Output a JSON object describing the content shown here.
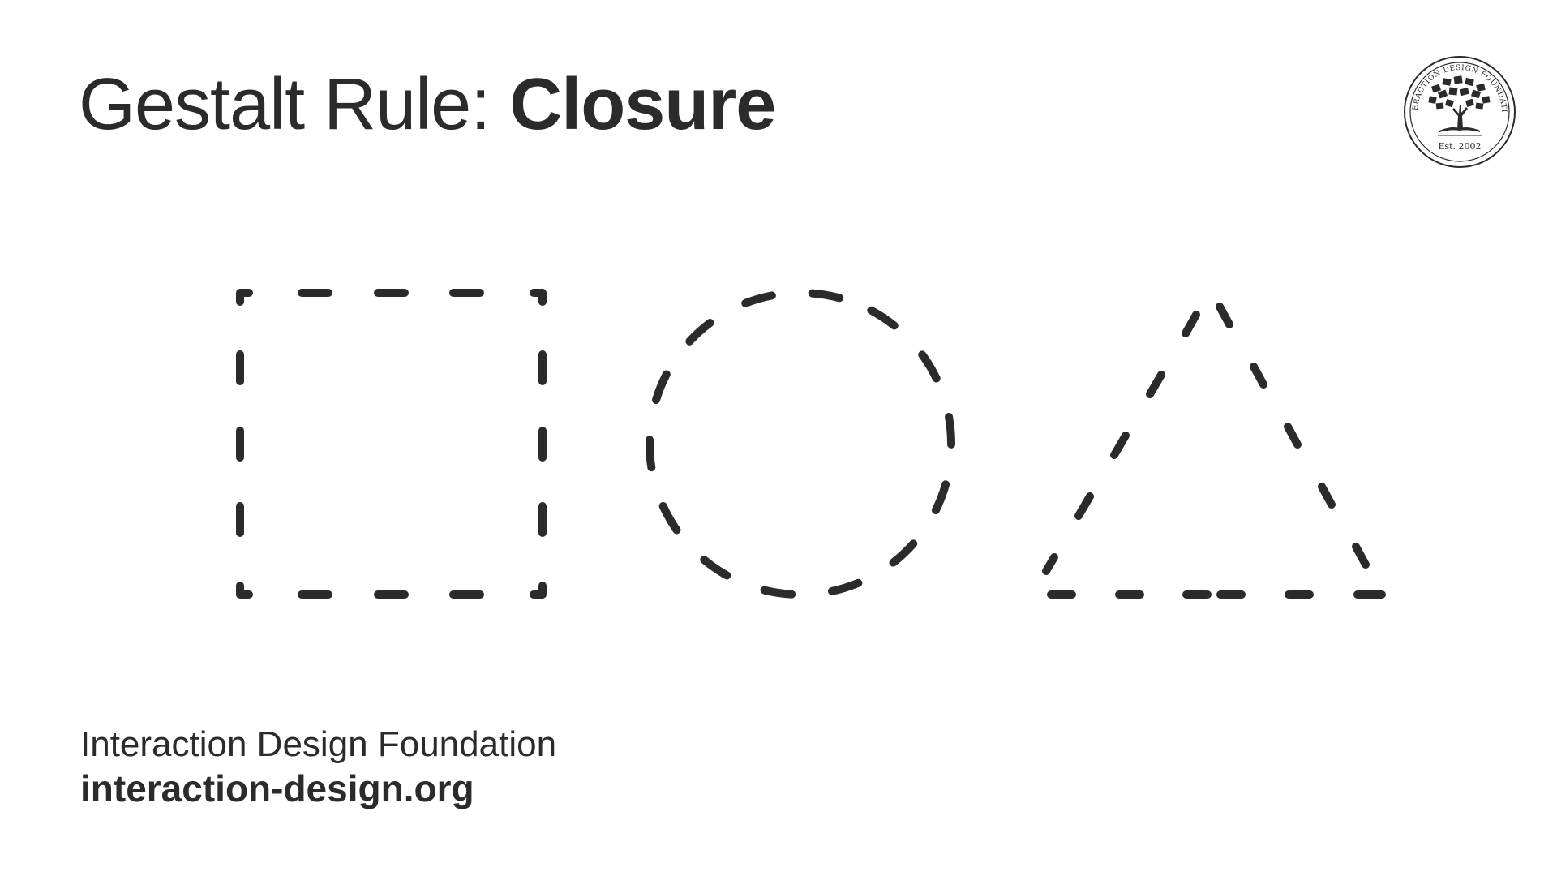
{
  "title": {
    "regular": "Gestalt Rule: ",
    "bold": "Closure"
  },
  "logo": {
    "ring_text": "INTERACTION DESIGN FOUNDATION",
    "established": "Est. 2002"
  },
  "shapes": [
    "dashed-square",
    "dashed-circle",
    "dashed-triangle"
  ],
  "footer": {
    "organization": "Interaction Design Foundation",
    "url": "interaction-design.org"
  },
  "colors": {
    "ink": "#2b2b2b",
    "background": "#ffffff"
  }
}
